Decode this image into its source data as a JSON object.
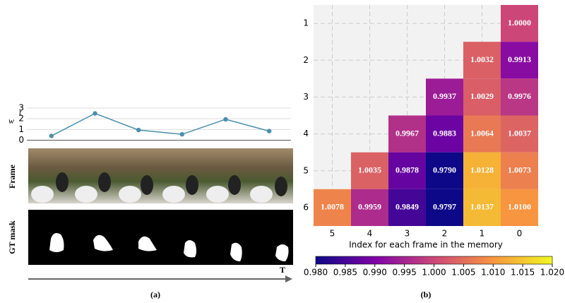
{
  "chart_data": [
    {
      "type": "line",
      "ylabel": "w",
      "ylabel_superscript": "t",
      "categories": [
        null,
        null,
        null,
        null,
        null,
        null
      ],
      "values": [
        0.4,
        2.5,
        0.95,
        0.55,
        1.95,
        0.85
      ],
      "color": "#4a8fae",
      "ylim": [
        -0.1,
        3.2
      ],
      "yticks": [
        0,
        1,
        2,
        3
      ],
      "grid": true,
      "row_labels": [
        "Frame",
        "GT mask"
      ],
      "time_label": "T",
      "caption": "(a)"
    },
    {
      "type": "heatmap",
      "xlabel": "Index for each frame in the memory",
      "x_categories": [
        "5",
        "4",
        "3",
        "2",
        "1",
        "0"
      ],
      "y_categories": [
        "1",
        "2",
        "3",
        "4",
        "5",
        "6"
      ],
      "values": [
        [
          null,
          null,
          null,
          null,
          null,
          1.0
        ],
        [
          null,
          null,
          null,
          null,
          1.0032,
          0.9913
        ],
        [
          null,
          null,
          null,
          0.9937,
          1.0029,
          0.9976
        ],
        [
          null,
          null,
          0.9967,
          0.9883,
          1.0064,
          1.0037
        ],
        [
          null,
          1.0035,
          0.9878,
          0.979,
          1.0128,
          1.0073
        ],
        [
          1.0078,
          0.9959,
          0.9849,
          0.9797,
          1.0137,
          1.01
        ]
      ],
      "value_labels": [
        [
          null,
          null,
          null,
          null,
          null,
          "1.0000"
        ],
        [
          null,
          null,
          null,
          null,
          "1.0032",
          "0.9913"
        ],
        [
          null,
          null,
          null,
          "0.9937",
          "1.0029",
          "0.9976"
        ],
        [
          null,
          null,
          "0.9967",
          "0.9883",
          "1.0064",
          "1.0037"
        ],
        [
          null,
          "1.0035",
          "0.9878",
          "0.9790",
          "1.0128",
          "1.0073"
        ],
        [
          "1.0078",
          "0.9959",
          "0.9849",
          "0.9797",
          "1.0137",
          "1.0100"
        ]
      ],
      "colormap": "plasma",
      "grid": true,
      "colorbar": {
        "lim": [
          0.98,
          1.02
        ],
        "ticks": [
          {
            "value": 0.98,
            "label": "0.980"
          },
          {
            "value": 0.985,
            "label": "0.985"
          },
          {
            "value": 0.99,
            "label": "0.990"
          },
          {
            "value": 0.995,
            "label": "0.995"
          },
          {
            "value": 1.0,
            "label": "1.000"
          },
          {
            "value": 1.005,
            "label": "1.005"
          },
          {
            "value": 1.01,
            "label": "1.010"
          },
          {
            "value": 1.015,
            "label": "1.015"
          },
          {
            "value": 1.02,
            "label": "1.020"
          }
        ]
      },
      "caption": "(b)"
    }
  ]
}
